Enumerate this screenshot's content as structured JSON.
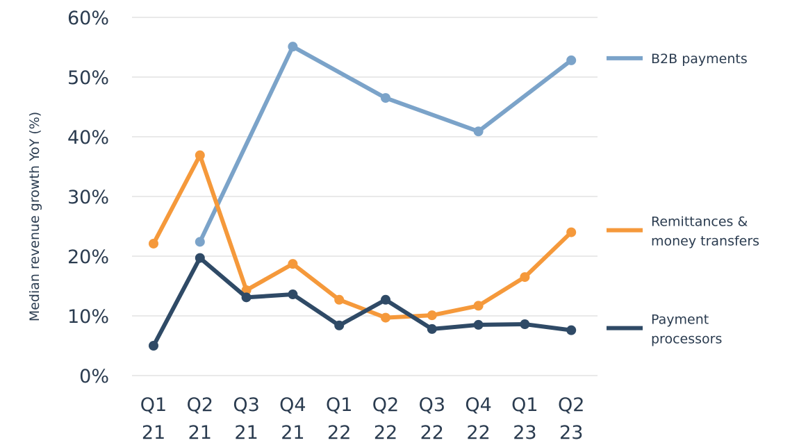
{
  "chart_data": {
    "type": "line",
    "title": "",
    "xlabel": "",
    "ylabel": "Median revenue growth YoY  (%)",
    "ylim": [
      0,
      60
    ],
    "yticks": [
      0,
      10,
      20,
      30,
      40,
      50,
      60
    ],
    "ytick_labels": [
      "0%",
      "10%",
      "20%",
      "30%",
      "40%",
      "50%",
      "60%"
    ],
    "grid": true,
    "legend_placement": "right",
    "categories": [
      [
        "Q1",
        "21"
      ],
      [
        "Q2",
        "21"
      ],
      [
        "Q3",
        "21"
      ],
      [
        "Q4",
        "21"
      ],
      [
        "Q1",
        "22"
      ],
      [
        "Q2",
        "22"
      ],
      [
        "Q3",
        "22"
      ],
      [
        "Q4",
        "22"
      ],
      [
        "Q1",
        "23"
      ],
      [
        "Q2",
        "23"
      ]
    ],
    "series": [
      {
        "name": "B2B payments",
        "legend": [
          "B2B payments"
        ],
        "color": "#7ba3c9",
        "values": [
          null,
          22.4,
          null,
          55.1,
          null,
          46.5,
          null,
          40.9,
          null,
          52.8
        ]
      },
      {
        "name": "Remittances & money transfers",
        "legend": [
          "Remittances &",
          "money transfers"
        ],
        "color": "#f5993b",
        "values": [
          22.1,
          36.9,
          14.3,
          18.7,
          12.7,
          9.7,
          10.1,
          11.7,
          16.5,
          24.0
        ]
      },
      {
        "name": "Payment processors",
        "legend": [
          "Payment",
          "processors"
        ],
        "color": "#2f4a66",
        "values": [
          5.0,
          19.7,
          13.1,
          13.6,
          8.4,
          12.7,
          7.8,
          8.5,
          8.6,
          7.6
        ]
      }
    ]
  }
}
